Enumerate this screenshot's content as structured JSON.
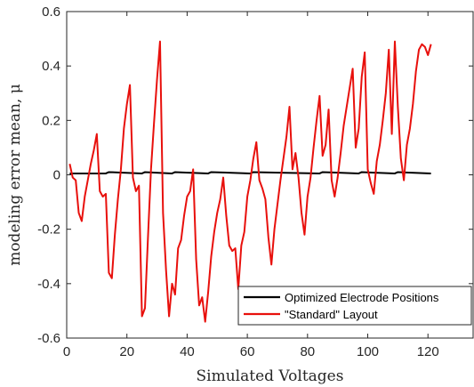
{
  "chart_data": {
    "type": "line",
    "xlabel": "Simulated Voltages",
    "ylabel": "modeling error mean, μ",
    "xlim": [
      0,
      135
    ],
    "ylim": [
      -0.6,
      0.6
    ],
    "xticks": [
      0,
      20,
      40,
      60,
      80,
      100,
      120
    ],
    "yticks": [
      -0.6,
      -0.4,
      -0.2,
      0,
      0.2,
      0.4,
      0.6
    ],
    "xtick_labels": [
      "0",
      "20",
      "40",
      "60",
      "80",
      "100",
      "120"
    ],
    "ytick_labels": [
      "-0.6",
      "-0.4",
      "-0.2",
      "0",
      "0.2",
      "0.4",
      "0.6"
    ],
    "grid": false,
    "legend_position": "bottom-right",
    "series": [
      {
        "name": "Optimized Electrode Positions",
        "color": "#000000",
        "x": [
          1,
          13,
          14,
          25,
          26,
          35,
          36,
          47,
          48,
          61,
          62,
          84,
          85,
          97,
          98,
          109,
          110,
          121
        ],
        "y": [
          0.005,
          0.005,
          0.01,
          0.005,
          0.01,
          0.005,
          0.01,
          0.005,
          0.01,
          0.005,
          0.01,
          0.005,
          0.01,
          0.005,
          0.01,
          0.005,
          0.01,
          0.005
        ]
      },
      {
        "name": "\"Standard\" Layout",
        "color": "#e8100c",
        "x": [
          1,
          2,
          3,
          4,
          5,
          6,
          7,
          8,
          9,
          10,
          11,
          12,
          13,
          14,
          15,
          16,
          17,
          18,
          19,
          20,
          21,
          22,
          23,
          24,
          25,
          26,
          27,
          28,
          29,
          30,
          31,
          32,
          33,
          34,
          35,
          36,
          37,
          38,
          39,
          40,
          41,
          42,
          43,
          44,
          45,
          46,
          47,
          48,
          49,
          50,
          51,
          52,
          53,
          54,
          55,
          56,
          57,
          58,
          59,
          60,
          61,
          62,
          63,
          64,
          65,
          66,
          67,
          68,
          69,
          70,
          71,
          72,
          73,
          74,
          75,
          76,
          77,
          78,
          79,
          80,
          81,
          82,
          83,
          84,
          85,
          86,
          87,
          88,
          89,
          90,
          91,
          92,
          93,
          94,
          95,
          96,
          97,
          98,
          99,
          100,
          101,
          102,
          103,
          104,
          105,
          106,
          107,
          108,
          109,
          110,
          111,
          112,
          113,
          114,
          115,
          116,
          117,
          118,
          119,
          120,
          121
        ],
        "y": [
          0.04,
          -0.01,
          -0.02,
          -0.14,
          -0.17,
          -0.08,
          -0.02,
          0.04,
          0.09,
          0.15,
          -0.06,
          -0.08,
          -0.07,
          -0.36,
          -0.38,
          -0.22,
          -0.09,
          0.02,
          0.17,
          0.26,
          0.33,
          -0.01,
          -0.06,
          -0.04,
          -0.52,
          -0.49,
          -0.23,
          0.02,
          0.19,
          0.35,
          0.49,
          -0.14,
          -0.35,
          -0.52,
          -0.4,
          -0.44,
          -0.27,
          -0.24,
          -0.15,
          -0.08,
          -0.06,
          0.02,
          -0.31,
          -0.48,
          -0.45,
          -0.54,
          -0.43,
          -0.3,
          -0.21,
          -0.14,
          -0.09,
          -0.01,
          -0.15,
          -0.26,
          -0.28,
          -0.27,
          -0.42,
          -0.26,
          -0.21,
          -0.08,
          -0.02,
          0.06,
          0.12,
          -0.02,
          -0.05,
          -0.09,
          -0.23,
          -0.33,
          -0.2,
          -0.11,
          -0.02,
          0.06,
          0.14,
          0.25,
          0.02,
          0.08,
          -0.01,
          -0.14,
          -0.22,
          -0.08,
          -0.01,
          0.1,
          0.2,
          0.29,
          0.07,
          0.11,
          0.24,
          -0.02,
          -0.08,
          -0.01,
          0.08,
          0.18,
          0.25,
          0.32,
          0.39,
          0.1,
          0.17,
          0.36,
          0.45,
          0.02,
          -0.03,
          -0.07,
          0.05,
          0.11,
          0.2,
          0.3,
          0.46,
          0.15,
          0.49,
          0.25,
          0.06,
          -0.02,
          0.11,
          0.17,
          0.26,
          0.38,
          0.46,
          0.48,
          0.47,
          0.44,
          0.48
        ]
      }
    ]
  }
}
